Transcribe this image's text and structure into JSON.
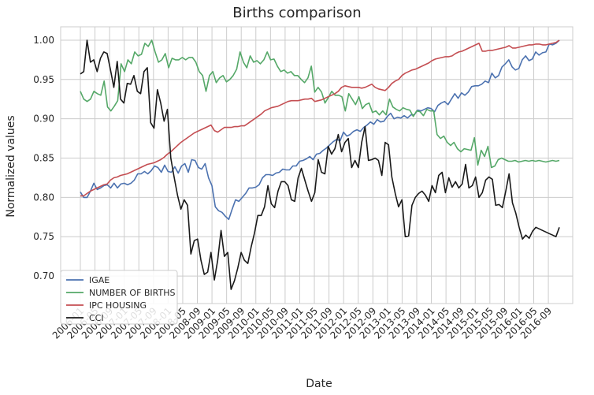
{
  "chart_data": {
    "type": "line",
    "title": "Births comparison",
    "xlabel": "Date",
    "ylabel": "Normalized values",
    "x_start": "2006-01",
    "x_end": "2016-12",
    "xticks": [
      "2006-01",
      "2006-05",
      "2006-09",
      "2007-01",
      "2007-05",
      "2007-09",
      "2008-01",
      "2008-05",
      "2008-09",
      "2009-01",
      "2009-05",
      "2009-09",
      "2010-01",
      "2010-05",
      "2010-09",
      "2011-01",
      "2011-05",
      "2011-09",
      "2012-01",
      "2012-05",
      "2012-09",
      "2013-01",
      "2013-05",
      "2013-09",
      "2014-01",
      "2014-05",
      "2014-09",
      "2015-01",
      "2015-05",
      "2015-09",
      "2016-01",
      "2016-05",
      "2016-09"
    ],
    "yticks": [
      "0.70",
      "0.75",
      "0.80",
      "0.85",
      "0.90",
      "0.95",
      "1.00"
    ],
    "ylim": [
      0.665,
      1.017
    ],
    "grid": true,
    "legend_position": "bottom-left",
    "series": [
      {
        "name": "IGAE",
        "color": "#4c72b0",
        "values": [
          0.807,
          0.8,
          0.8,
          0.808,
          0.818,
          0.81,
          0.812,
          0.815,
          0.816,
          0.812,
          0.818,
          0.812,
          0.817,
          0.818,
          0.816,
          0.818,
          0.822,
          0.83,
          0.83,
          0.833,
          0.83,
          0.834,
          0.84,
          0.838,
          0.832,
          0.841,
          0.833,
          0.832,
          0.839,
          0.831,
          0.84,
          0.843,
          0.832,
          0.848,
          0.847,
          0.838,
          0.836,
          0.843,
          0.825,
          0.815,
          0.788,
          0.783,
          0.781,
          0.776,
          0.772,
          0.785,
          0.797,
          0.795,
          0.8,
          0.805,
          0.812,
          0.812,
          0.813,
          0.816,
          0.825,
          0.829,
          0.829,
          0.828,
          0.831,
          0.832,
          0.836,
          0.835,
          0.835,
          0.84,
          0.84,
          0.846,
          0.847,
          0.849,
          0.852,
          0.848,
          0.855,
          0.856,
          0.86,
          0.863,
          0.867,
          0.871,
          0.874,
          0.872,
          0.883,
          0.878,
          0.88,
          0.884,
          0.886,
          0.884,
          0.889,
          0.892,
          0.896,
          0.893,
          0.899,
          0.896,
          0.897,
          0.903,
          0.907,
          0.9,
          0.902,
          0.901,
          0.904,
          0.901,
          0.905,
          0.905,
          0.911,
          0.91,
          0.912,
          0.914,
          0.913,
          0.909,
          0.917,
          0.92,
          0.922,
          0.918,
          0.925,
          0.932,
          0.926,
          0.933,
          0.93,
          0.934,
          0.941,
          0.942,
          0.942,
          0.944,
          0.948,
          0.946,
          0.958,
          0.952,
          0.955,
          0.966,
          0.97,
          0.975,
          0.966,
          0.962,
          0.964,
          0.975,
          0.98,
          0.974,
          0.976,
          0.985,
          0.981,
          0.984,
          0.985,
          0.995,
          0.994,
          0.996,
          1.0
        ]
      },
      {
        "name": "NUMBER OF BIRTHS",
        "color": "#55a868",
        "values": [
          0.935,
          0.925,
          0.922,
          0.925,
          0.935,
          0.932,
          0.93,
          0.948,
          0.915,
          0.91,
          0.916,
          0.923,
          0.97,
          0.96,
          0.975,
          0.97,
          0.985,
          0.98,
          0.982,
          0.996,
          0.992,
          1.0,
          0.985,
          0.972,
          0.975,
          0.983,
          0.965,
          0.977,
          0.975,
          0.975,
          0.978,
          0.975,
          0.978,
          0.978,
          0.972,
          0.96,
          0.955,
          0.935,
          0.955,
          0.96,
          0.946,
          0.952,
          0.955,
          0.947,
          0.95,
          0.955,
          0.963,
          0.985,
          0.972,
          0.965,
          0.98,
          0.972,
          0.974,
          0.97,
          0.975,
          0.985,
          0.975,
          0.976,
          0.967,
          0.96,
          0.962,
          0.958,
          0.96,
          0.955,
          0.955,
          0.95,
          0.946,
          0.952,
          0.967,
          0.934,
          0.94,
          0.934,
          0.92,
          0.927,
          0.935,
          0.93,
          0.93,
          0.928,
          0.91,
          0.932,
          0.925,
          0.918,
          0.928,
          0.913,
          0.918,
          0.92,
          0.908,
          0.91,
          0.905,
          0.91,
          0.905,
          0.925,
          0.915,
          0.912,
          0.91,
          0.914,
          0.912,
          0.911,
          0.903,
          0.91,
          0.909,
          0.904,
          0.912,
          0.91,
          0.91,
          0.88,
          0.875,
          0.878,
          0.87,
          0.866,
          0.87,
          0.862,
          0.858,
          0.862,
          0.861,
          0.86,
          0.876,
          0.841,
          0.86,
          0.852,
          0.865,
          0.838,
          0.84,
          0.848,
          0.85,
          0.848,
          0.846,
          0.846,
          0.847,
          0.845,
          0.846,
          0.847,
          0.846,
          0.847,
          0.846,
          0.847,
          0.846,
          0.845,
          0.846,
          0.847,
          0.846,
          0.847
        ]
      },
      {
        "name": "IPC HOUSING",
        "color": "#c44e52",
        "values": [
          0.802,
          0.802,
          0.805,
          0.808,
          0.81,
          0.812,
          0.814,
          0.816,
          0.817,
          0.822,
          0.825,
          0.826,
          0.828,
          0.829,
          0.83,
          0.832,
          0.834,
          0.836,
          0.838,
          0.84,
          0.842,
          0.843,
          0.844,
          0.846,
          0.848,
          0.851,
          0.855,
          0.858,
          0.862,
          0.866,
          0.87,
          0.873,
          0.876,
          0.879,
          0.882,
          0.884,
          0.886,
          0.888,
          0.89,
          0.892,
          0.885,
          0.883,
          0.886,
          0.889,
          0.889,
          0.889,
          0.89,
          0.89,
          0.891,
          0.891,
          0.894,
          0.897,
          0.9,
          0.903,
          0.906,
          0.91,
          0.912,
          0.914,
          0.915,
          0.916,
          0.918,
          0.92,
          0.922,
          0.923,
          0.923,
          0.923,
          0.924,
          0.925,
          0.925,
          0.926,
          0.922,
          0.923,
          0.924,
          0.926,
          0.928,
          0.93,
          0.932,
          0.935,
          0.94,
          0.942,
          0.941,
          0.94,
          0.94,
          0.94,
          0.939,
          0.94,
          0.942,
          0.944,
          0.94,
          0.938,
          0.937,
          0.936,
          0.94,
          0.945,
          0.948,
          0.95,
          0.955,
          0.958,
          0.96,
          0.962,
          0.963,
          0.965,
          0.967,
          0.969,
          0.971,
          0.974,
          0.976,
          0.977,
          0.978,
          0.979,
          0.979,
          0.98,
          0.983,
          0.985,
          0.986,
          0.988,
          0.99,
          0.992,
          0.994,
          0.996,
          0.986,
          0.986,
          0.987,
          0.987,
          0.988,
          0.989,
          0.99,
          0.991,
          0.993,
          0.99,
          0.99,
          0.991,
          0.992,
          0.993,
          0.994,
          0.994,
          0.995,
          0.995,
          0.994,
          0.994,
          0.995,
          0.996,
          0.997,
          1.0
        ]
      },
      {
        "name": "CCI",
        "color": "#1a1a1a",
        "values": [
          0.957,
          0.96,
          1.0,
          0.972,
          0.975,
          0.96,
          0.977,
          0.985,
          0.983,
          0.962,
          0.94,
          0.973,
          0.925,
          0.92,
          0.945,
          0.944,
          0.955,
          0.935,
          0.932,
          0.96,
          0.965,
          0.895,
          0.888,
          0.937,
          0.92,
          0.897,
          0.912,
          0.85,
          0.826,
          0.803,
          0.785,
          0.797,
          0.79,
          0.728,
          0.745,
          0.747,
          0.72,
          0.702,
          0.705,
          0.73,
          0.695,
          0.72,
          0.758,
          0.725,
          0.73,
          0.683,
          0.694,
          0.71,
          0.73,
          0.72,
          0.716,
          0.737,
          0.755,
          0.777,
          0.777,
          0.788,
          0.815,
          0.792,
          0.787,
          0.808,
          0.82,
          0.82,
          0.815,
          0.797,
          0.795,
          0.825,
          0.837,
          0.822,
          0.808,
          0.795,
          0.806,
          0.848,
          0.832,
          0.83,
          0.865,
          0.855,
          0.862,
          0.88,
          0.858,
          0.87,
          0.875,
          0.838,
          0.847,
          0.838,
          0.87,
          0.89,
          0.847,
          0.848,
          0.85,
          0.847,
          0.828,
          0.87,
          0.867,
          0.826,
          0.805,
          0.788,
          0.797,
          0.75,
          0.751,
          0.79,
          0.8,
          0.805,
          0.808,
          0.803,
          0.795,
          0.815,
          0.806,
          0.828,
          0.832,
          0.806,
          0.825,
          0.813,
          0.82,
          0.812,
          0.817,
          0.842,
          0.812,
          0.815,
          0.826,
          0.8,
          0.806,
          0.822,
          0.826,
          0.823,
          0.79,
          0.791,
          0.787,
          0.808,
          0.83,
          0.793,
          0.78,
          0.762,
          0.747,
          0.752,
          0.748,
          0.757,
          0.762,
          0.76,
          0.758,
          0.756,
          0.754,
          0.752,
          0.75,
          0.762
        ]
      }
    ]
  }
}
